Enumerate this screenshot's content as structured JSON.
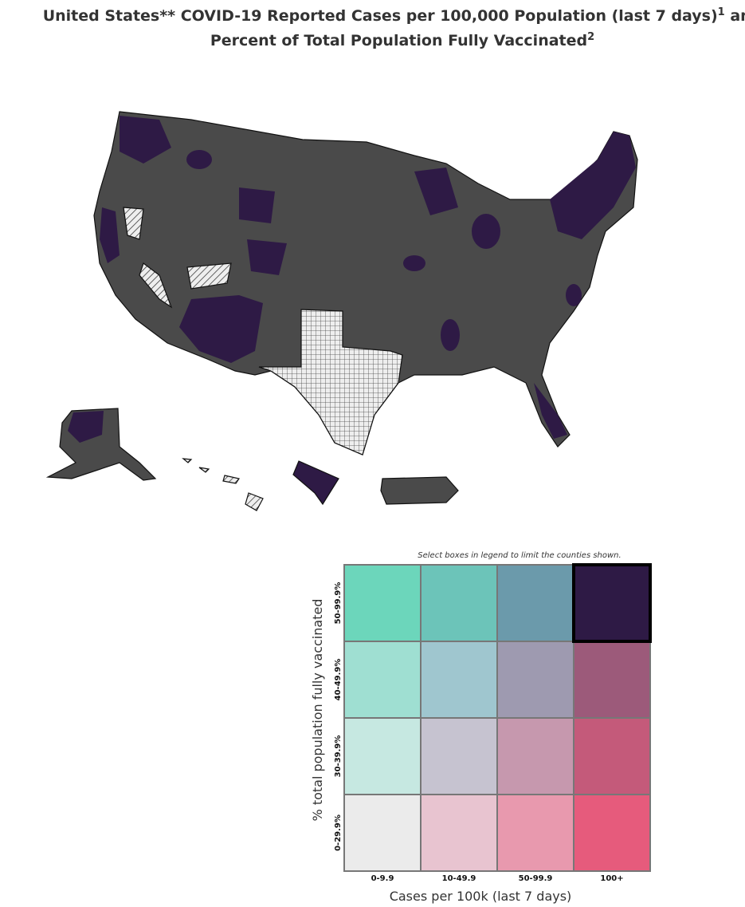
{
  "title": {
    "line1": "United States** COVID-19 Reported Cases per 100,000 Population (last 7 days)",
    "sup1": "1",
    "line1_end": " and",
    "line2": "Percent of Total Population Fully Vaccinated",
    "sup2": "2"
  },
  "legend": {
    "note": "Select boxes in legend to limit the counties shown.",
    "y_label": "% total population fully vaccinated",
    "x_label": "Cases per 100k (last 7 days)",
    "columns": [
      "0-9.9",
      "10-49.9",
      "50-99.9",
      "100+"
    ],
    "rows": [
      "50-99.9%",
      "40-49.9%",
      "30-39.9%",
      "0-29.9%"
    ],
    "colors": [
      [
        "#6cd6bb",
        "#6cc4b9",
        "#6b9aab",
        "#2e1a45"
      ],
      [
        "#9fdfd2",
        "#9fc6cf",
        "#9e9ab0",
        "#9c5a7a"
      ],
      [
        "#c6e8e1",
        "#c6c3d0",
        "#c698ae",
        "#c45a7a"
      ],
      [
        "#ebebeb",
        "#e8c4d0",
        "#e899ae",
        "#e65b7c"
      ]
    ],
    "selected": {
      "row": 0,
      "col": 3
    }
  }
}
